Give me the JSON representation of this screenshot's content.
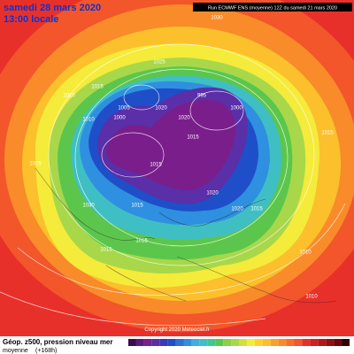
{
  "header": {
    "date": "samedi 28 mars 2020",
    "time": "13:00 locale",
    "run": "Run ECMWF ENS (moyenne) 12Z du samedi 21 mars 2020"
  },
  "footer": {
    "title": "Géop. z500, pression niveau mer",
    "subtitle": "moyenne",
    "lead": "(+168h)",
    "copyright": "Copyright 2020 Meteociel.fr"
  },
  "isobar_labels": [
    "1030",
    "1025",
    "1015",
    "1010",
    "1020",
    "1005",
    "1000",
    "995",
    "1000",
    "1015",
    "1020",
    "1015",
    "1010",
    "1025",
    "1030",
    "1015",
    "1020",
    "1020",
    "1015",
    "1010",
    "1015",
    "1015",
    "1010",
    "1015"
  ]
}
